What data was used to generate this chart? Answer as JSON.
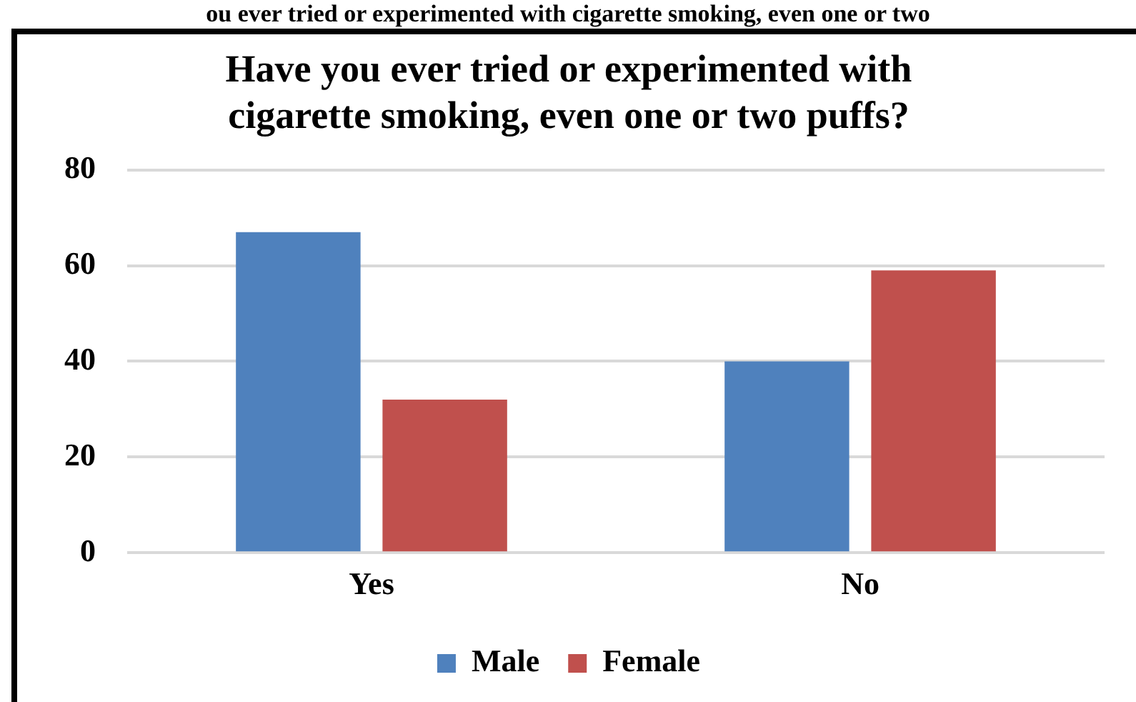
{
  "chart_data": {
    "type": "bar",
    "title": [
      "Have you ever tried or experimented with",
      "cigarette smoking, even one or two puffs?"
    ],
    "annotations": [
      "ou ever tried or experimented with cigarette smoking, even one or two"
    ],
    "categories": [
      "Yes",
      "No"
    ],
    "series": [
      {
        "name": "Male",
        "color": "#4f81bd",
        "values": [
          67,
          40
        ]
      },
      {
        "name": "Female",
        "color": "#c0504d",
        "values": [
          32,
          59
        ]
      }
    ],
    "ylim": [
      0,
      80
    ],
    "yticks": [
      0,
      20,
      40,
      60,
      80
    ],
    "grid": "y",
    "legend": "bottom"
  }
}
